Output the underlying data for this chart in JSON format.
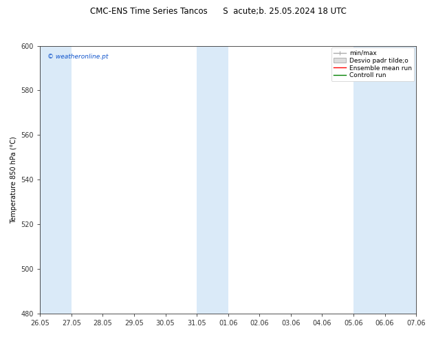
{
  "title": "CMC-ENS Time Series Tancos      S  acute;b. 25.05.2024 18 UTC",
  "ylabel": "Temperature 850 hPa (°C)",
  "ylim": [
    480,
    600
  ],
  "yticks": [
    480,
    500,
    520,
    540,
    560,
    580,
    600
  ],
  "xtick_labels": [
    "26.05",
    "27.05",
    "28.05",
    "29.05",
    "30.05",
    "31.05",
    "01.06",
    "02.06",
    "03.06",
    "04.06",
    "05.06",
    "06.06",
    "07.06"
  ],
  "shaded_band_color": "#daeaf8",
  "watermark": "© weatheronline.pt",
  "watermark_color": "#1155cc",
  "background_color": "#ffffff",
  "ensemble_mean_color": "#ff0000",
  "control_run_color": "#008000",
  "min_max_color": "#aaaaaa",
  "desvio_color": "#cccccc",
  "font_size": 7,
  "title_font_size": 8.5,
  "legend_fontsize": 6.5
}
